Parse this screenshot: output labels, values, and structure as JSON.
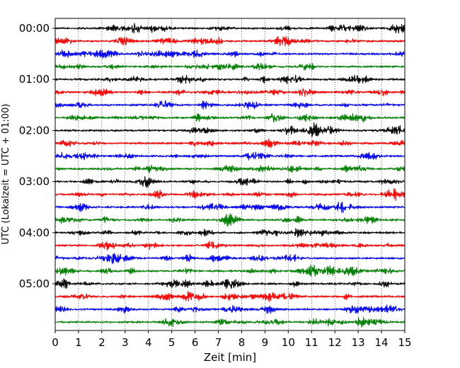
{
  "chart_data": {
    "type": "line",
    "title": "",
    "xlabel": "Zeit  [min]",
    "ylabel": "UTC (Lokalzeit = UTC + 01:00)",
    "xlim": [
      0,
      15
    ],
    "x_ticks": [
      "0",
      "1",
      "2",
      "3",
      "4",
      "5",
      "6",
      "7",
      "8",
      "9",
      "10",
      "11",
      "12",
      "13",
      "14",
      "15"
    ],
    "y_ticks": [
      "00:00",
      "01:00",
      "02:00",
      "03:00",
      "04:00",
      "05:00"
    ],
    "grid": "vertical dotted lines at each minute",
    "trace_interval_minutes": 15,
    "trace_colors": [
      "#000000",
      "#ff0000",
      "#0000ff",
      "#007f00"
    ],
    "trace_count": 24,
    "note_series": "each trace is a 15-minute seismogram segment; traces stacked top-to-bottom starting at 00:00"
  }
}
